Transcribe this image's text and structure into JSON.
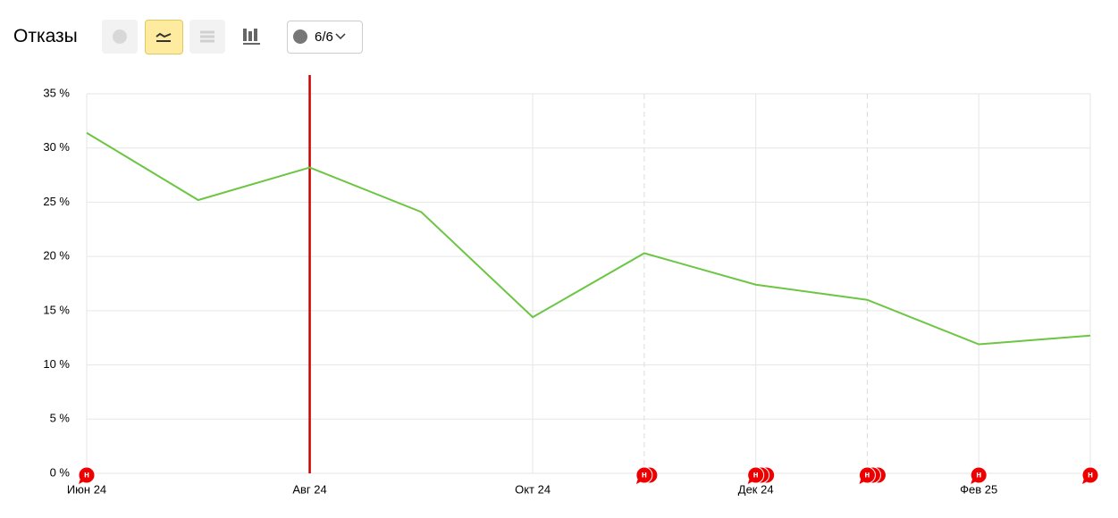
{
  "header": {
    "title": "Отказы",
    "comments_filter": "6/6"
  },
  "chart_data": {
    "type": "line",
    "categories": [
      "Июн 24",
      null,
      "Авг 24",
      null,
      "Окт 24",
      null,
      "Дек 24",
      null,
      "Фев 25",
      null
    ],
    "series": [
      {
        "name": "Отказы",
        "color": "#6cc644",
        "values": [
          31.4,
          25.2,
          28.2,
          24.1,
          14.4,
          20.3,
          17.4,
          16.0,
          11.9,
          12.7
        ]
      }
    ],
    "ylim": [
      0,
      35
    ],
    "yticks": [
      {
        "value": 0,
        "label": "0 %"
      },
      {
        "value": 5,
        "label": "5 %"
      },
      {
        "value": 10,
        "label": "10 %"
      },
      {
        "value": 15,
        "label": "15 %"
      },
      {
        "value": 20,
        "label": "20 %"
      },
      {
        "value": 25,
        "label": "25 %"
      },
      {
        "value": 30,
        "label": "30 %"
      },
      {
        "value": 35,
        "label": "35 %"
      }
    ],
    "grid": true,
    "highlight_category": 2,
    "highlight_color": "#cc0000",
    "annotations": [
      {
        "category": 0,
        "count": 1,
        "label": "н"
      },
      {
        "category": 5,
        "count": 2,
        "label": "н"
      },
      {
        "category": 6,
        "count": 3,
        "label": "н"
      },
      {
        "category": 7,
        "count": 3,
        "label": "н"
      },
      {
        "category": 8,
        "count": 1,
        "label": "н"
      },
      {
        "category": 9,
        "count": 1,
        "label": "н"
      }
    ]
  }
}
